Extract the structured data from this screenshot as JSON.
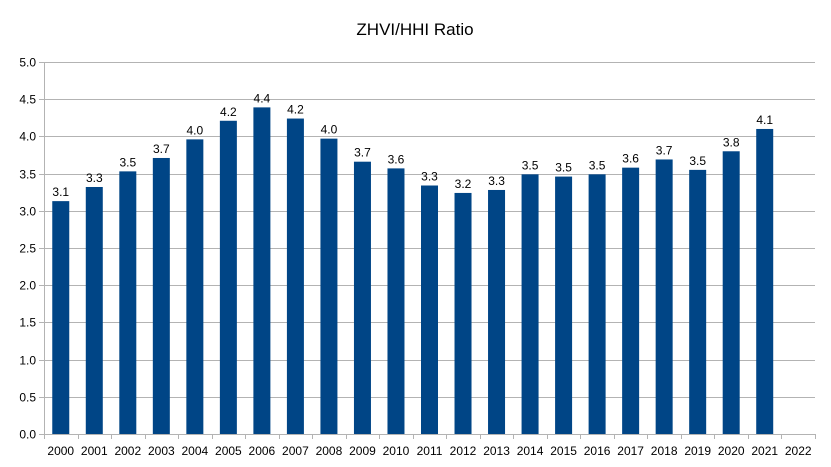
{
  "chart_data": {
    "type": "bar",
    "title": "ZHVI/HHI Ratio",
    "xlabel": "",
    "ylabel": "",
    "categories": [
      "2000",
      "2001",
      "2002",
      "2003",
      "2004",
      "2005",
      "2006",
      "2007",
      "2008",
      "2009",
      "2010",
      "2011",
      "2012",
      "2013",
      "2014",
      "2015",
      "2016",
      "2017",
      "2018",
      "2019",
      "2020",
      "2021",
      "2022"
    ],
    "values": [
      3.13,
      3.32,
      3.53,
      3.71,
      3.96,
      4.21,
      4.39,
      4.24,
      3.97,
      3.66,
      3.57,
      3.34,
      3.24,
      3.28,
      3.49,
      3.46,
      3.49,
      3.58,
      3.69,
      3.55,
      3.8,
      4.1,
      null
    ],
    "data_labels": [
      "3.1",
      "3.3",
      "3.5",
      "3.7",
      "4.0",
      "4.2",
      "4.4",
      "4.2",
      "4.0",
      "3.7",
      "3.6",
      "3.3",
      "3.2",
      "3.3",
      "3.5",
      "3.5",
      "3.5",
      "3.6",
      "3.7",
      "3.5",
      "3.8",
      "4.1",
      ""
    ],
    "y_ticks": [
      "0.0",
      "0.5",
      "1.0",
      "1.5",
      "2.0",
      "2.5",
      "3.0",
      "3.5",
      "4.0",
      "4.5",
      "5.0"
    ],
    "ylim": [
      0,
      5
    ],
    "grid": true,
    "legend": "none",
    "colors": {
      "bar": "#004586",
      "grid": "#b3b3b3",
      "axis": "#b3b3b3"
    }
  }
}
